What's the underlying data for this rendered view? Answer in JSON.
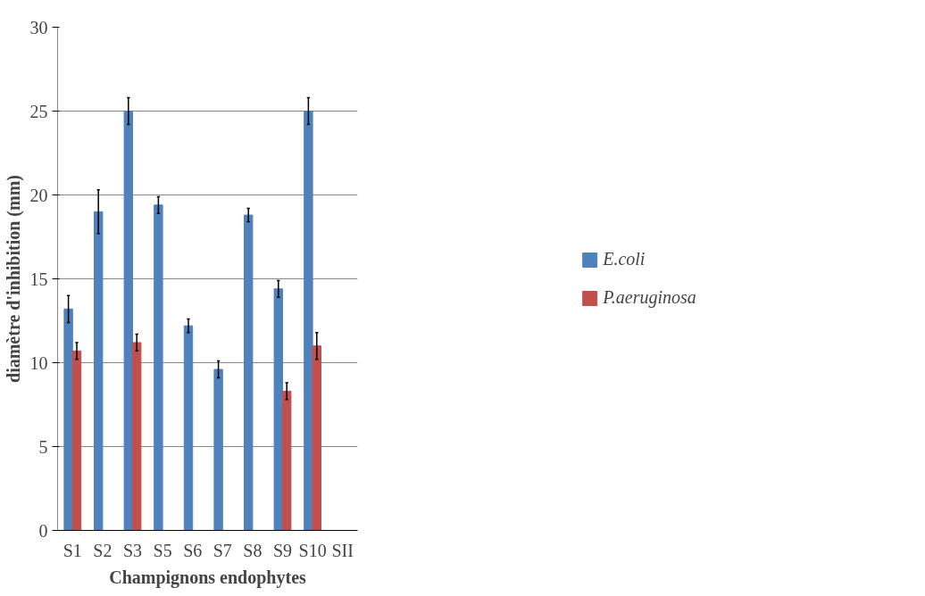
{
  "chart_data": {
    "type": "bar",
    "xlabel": "Champignons endophytes",
    "ylabel": "diamètre d'inhibition (mm)",
    "categories": [
      "S1",
      "S2",
      "S3",
      "S5",
      "S6",
      "S7",
      "S8",
      "S9",
      "S10",
      "SII"
    ],
    "series": [
      {
        "name": "E.coli",
        "color": "#4f81bd",
        "values": [
          13.2,
          19.0,
          25.0,
          19.4,
          12.2,
          9.6,
          18.8,
          14.4,
          25.0,
          0
        ],
        "errors": [
          0.8,
          1.3,
          0.8,
          0.5,
          0.4,
          0.5,
          0.4,
          0.5,
          0.8,
          null
        ]
      },
      {
        "name": "P.aeruginosa",
        "color": "#c0504d",
        "values": [
          10.7,
          0,
          11.2,
          0,
          0,
          0,
          0,
          8.3,
          11.0,
          0
        ],
        "errors": [
          0.5,
          null,
          0.5,
          null,
          null,
          null,
          null,
          0.5,
          0.8,
          null
        ]
      }
    ],
    "ylim": [
      0,
      30
    ],
    "yticks": [
      0,
      5,
      10,
      15,
      20,
      25,
      30
    ],
    "grid": "y",
    "legend": "right"
  }
}
